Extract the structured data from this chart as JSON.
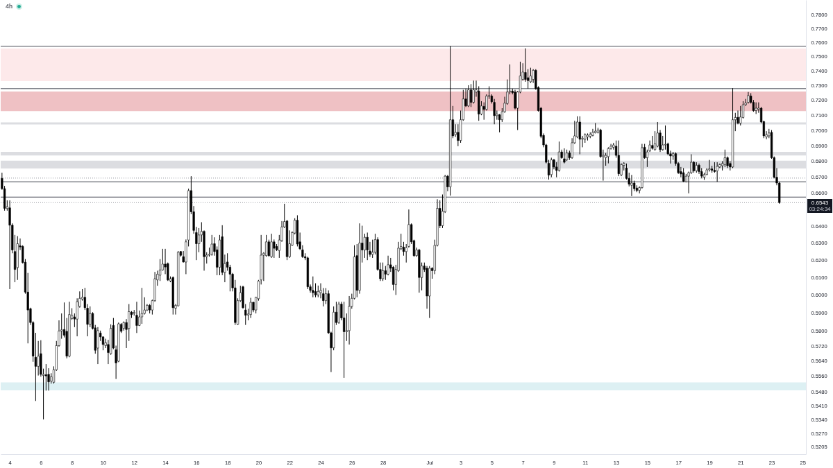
{
  "chart_data": {
    "type": "candlestick",
    "title": "4h",
    "color": "#000000",
    "log": true,
    "xlim": [
      "--06-03T10:00",
      "--07-25T05:00"
    ],
    "xticks": [
      {
        "value": "--06-04",
        "label": "4"
      },
      {
        "value": "--06-06",
        "label": "6"
      },
      {
        "value": "--06-08",
        "label": "8"
      },
      {
        "value": "--06-10",
        "label": "10"
      },
      {
        "value": "--06-12",
        "label": "12"
      },
      {
        "value": "--06-14",
        "label": "14"
      },
      {
        "value": "--06-16",
        "label": "16"
      },
      {
        "value": "--06-18",
        "label": "18"
      },
      {
        "value": "--06-20",
        "label": "20"
      },
      {
        "value": "--06-22",
        "label": "22"
      },
      {
        "value": "--06-24",
        "label": "24"
      },
      {
        "value": "--06-26",
        "label": "26"
      },
      {
        "value": "--06-28",
        "label": "28"
      },
      {
        "value": "--07-01",
        "label": "Jul"
      },
      {
        "value": "--07-03",
        "label": "3"
      },
      {
        "value": "--07-05",
        "label": "5"
      },
      {
        "value": "--07-07",
        "label": "7"
      },
      {
        "value": "--07-09",
        "label": "9"
      },
      {
        "value": "--07-11",
        "label": "11"
      },
      {
        "value": "--07-13",
        "label": "13"
      },
      {
        "value": "--07-15",
        "label": "15"
      },
      {
        "value": "--07-17",
        "label": "17"
      },
      {
        "value": "--07-19",
        "label": "19"
      },
      {
        "value": "--07-21",
        "label": "21"
      },
      {
        "value": "--07-23",
        "label": "23"
      },
      {
        "value": "--07-25",
        "label": "25"
      }
    ],
    "ylim": [
      0.517,
      0.791
    ],
    "yticks": [
      {
        "value": 0.78,
        "label": "0.7800"
      },
      {
        "value": 0.77,
        "label": "0.7700"
      },
      {
        "value": 0.76,
        "label": "0.7600"
      },
      {
        "value": 0.75,
        "label": "0.7500"
      },
      {
        "value": 0.74,
        "label": "0.7400"
      },
      {
        "value": 0.73,
        "label": "0.7300"
      },
      {
        "value": 0.72,
        "label": "0.7200"
      },
      {
        "value": 0.71,
        "label": "0.7100"
      },
      {
        "value": 0.7,
        "label": "0.7000"
      },
      {
        "value": 0.69,
        "label": "0.6900"
      },
      {
        "value": 0.68,
        "label": "0.6800"
      },
      {
        "value": 0.67,
        "label": "0.6700"
      },
      {
        "value": 0.66,
        "label": "0.6600"
      },
      {
        "value": 0.64,
        "label": "0.6400"
      },
      {
        "value": 0.63,
        "label": "0.6300"
      },
      {
        "value": 0.62,
        "label": "0.6200"
      },
      {
        "value": 0.61,
        "label": "0.6100"
      },
      {
        "value": 0.6,
        "label": "0.6000"
      },
      {
        "value": 0.59,
        "label": "0.5900"
      },
      {
        "value": 0.58,
        "label": "0.5800"
      },
      {
        "value": 0.572,
        "label": "0.5720"
      },
      {
        "value": 0.564,
        "label": "0.5640"
      },
      {
        "value": 0.556,
        "label": "0.5560"
      },
      {
        "value": 0.548,
        "label": "0.5480"
      },
      {
        "value": 0.541,
        "label": "0.5410"
      },
      {
        "value": 0.534,
        "label": "0.5340"
      },
      {
        "value": 0.527,
        "label": "0.5270"
      },
      {
        "value": 0.5205,
        "label": "0.5205"
      }
    ],
    "ref_lines": [
      {
        "axis": "y",
        "value": 0.7575,
        "color": "#434651",
        "line_style": "solid"
      },
      {
        "axis": "y",
        "value": 0.728,
        "color": "#434651",
        "line_style": "solid"
      },
      {
        "axis": "y",
        "value": 0.6695,
        "color": "#9598a1",
        "line_style": "dotted"
      },
      {
        "axis": "y",
        "value": 0.6672,
        "color": "#434651",
        "line_style": "solid"
      },
      {
        "axis": "y",
        "value": 0.6577,
        "color": "#434651",
        "line_style": "solid"
      },
      {
        "axis": "y",
        "value": 0.6543,
        "label": "0.6543",
        "color": "#9598a1",
        "line_style": "dotted"
      }
    ],
    "bands": [
      {
        "axis": "y",
        "from": 0.7331,
        "to": 0.7559,
        "color": "#fde9ea"
      },
      {
        "axis": "y",
        "from": 0.7128,
        "to": 0.726,
        "color": "#efc1c4"
      },
      {
        "axis": "y",
        "from": 0.704,
        "to": 0.7054,
        "color": "#dcdde1"
      },
      {
        "axis": "y",
        "from": 0.6838,
        "to": 0.6862,
        "color": "#dcdde1"
      },
      {
        "axis": "y",
        "from": 0.6755,
        "to": 0.6805,
        "color": "#dcdde1"
      },
      {
        "axis": "y",
        "from": 0.5488,
        "to": 0.5529,
        "color": "#ddf0f3"
      }
    ],
    "annotations": [
      "03:24:34"
    ],
    "x": [
      "--06-03T12:00",
      "--06-03T16:00",
      "--06-03T20:00",
      "--06-04T00:00",
      "--06-04T04:00",
      "--06-04T08:00",
      "--06-04T12:00",
      "--06-04T16:00",
      "--06-04T20:00",
      "--06-05T00:00",
      "--06-05T04:00",
      "--06-05T08:00",
      "--06-05T12:00",
      "--06-05T16:00",
      "--06-05T20:00",
      "--06-06T00:00",
      "--06-06T04:00",
      "--06-06T08:00",
      "--06-06T12:00",
      "--06-06T16:00",
      "--06-06T20:00",
      "--06-07T00:00",
      "--06-07T04:00",
      "--06-07T08:00",
      "--06-07T12:00",
      "--06-07T16:00",
      "--06-07T20:00",
      "--06-08T00:00",
      "--06-08T04:00",
      "--06-08T08:00",
      "--06-08T12:00",
      "--06-08T16:00",
      "--06-08T20:00",
      "--06-09T00:00",
      "--06-09T04:00",
      "--06-09T08:00",
      "--06-09T12:00",
      "--06-09T16:00",
      "--06-09T20:00",
      "--06-10T00:00",
      "--06-10T04:00",
      "--06-10T08:00",
      "--06-10T12:00",
      "--06-10T16:00",
      "--06-10T20:00",
      "--06-11T00:00",
      "--06-11T04:00",
      "--06-11T08:00",
      "--06-11T12:00",
      "--06-11T16:00",
      "--06-11T20:00",
      "--06-12T00:00",
      "--06-12T04:00",
      "--06-12T08:00",
      "--06-12T12:00",
      "--06-12T16:00",
      "--06-12T20:00",
      "--06-13T00:00",
      "--06-13T04:00",
      "--06-13T08:00",
      "--06-13T12:00",
      "--06-13T16:00",
      "--06-13T20:00",
      "--06-14T00:00",
      "--06-14T04:00",
      "--06-14T08:00",
      "--06-14T12:00",
      "--06-14T16:00",
      "--06-14T20:00",
      "--06-15T00:00",
      "--06-15T04:00",
      "--06-15T08:00",
      "--06-15T12:00",
      "--06-15T16:00",
      "--06-15T20:00",
      "--06-16T00:00",
      "--06-16T04:00",
      "--06-16T08:00",
      "--06-16T12:00",
      "--06-16T16:00",
      "--06-16T20:00",
      "--06-17T00:00",
      "--06-17T04:00",
      "--06-17T08:00",
      "--06-17T12:00",
      "--06-17T16:00",
      "--06-17T20:00",
      "--06-18T00:00",
      "--06-18T04:00",
      "--06-18T08:00",
      "--06-18T12:00",
      "--06-18T16:00",
      "--06-18T20:00",
      "--06-19T00:00",
      "--06-19T04:00",
      "--06-19T08:00",
      "--06-19T12:00",
      "--06-19T16:00",
      "--06-19T20:00",
      "--06-20T00:00",
      "--06-20T04:00",
      "--06-20T08:00",
      "--06-20T12:00",
      "--06-20T16:00",
      "--06-20T20:00",
      "--06-21T00:00",
      "--06-21T04:00",
      "--06-21T08:00",
      "--06-21T12:00",
      "--06-21T16:00",
      "--06-21T20:00",
      "--06-22T00:00",
      "--06-22T04:00",
      "--06-22T08:00",
      "--06-22T12:00",
      "--06-22T16:00",
      "--06-22T20:00",
      "--06-23T00:00",
      "--06-23T04:00",
      "--06-23T08:00",
      "--06-23T12:00",
      "--06-23T16:00",
      "--06-23T20:00",
      "--06-24T00:00",
      "--06-24T04:00",
      "--06-24T08:00",
      "--06-24T12:00",
      "--06-24T16:00",
      "--06-24T20:00",
      "--06-25T00:00",
      "--06-25T04:00",
      "--06-25T08:00",
      "--06-25T12:00",
      "--06-25T16:00",
      "--06-25T20:00",
      "--06-26T00:00",
      "--06-26T04:00",
      "--06-26T08:00",
      "--06-26T12:00",
      "--06-26T16:00",
      "--06-26T20:00",
      "--06-27T00:00",
      "--06-27T04:00",
      "--06-27T08:00",
      "--06-27T12:00",
      "--06-27T16:00",
      "--06-27T20:00",
      "--06-28T00:00",
      "--06-28T04:00",
      "--06-28T08:00",
      "--06-28T12:00",
      "--06-28T16:00",
      "--06-28T20:00",
      "--06-29T00:00",
      "--06-29T04:00",
      "--06-29T08:00",
      "--06-29T12:00",
      "--06-29T16:00",
      "--06-29T20:00",
      "--06-30T00:00",
      "--06-30T04:00",
      "--06-30T08:00",
      "--06-30T12:00",
      "--06-30T16:00",
      "--06-30T20:00",
      "--07-01T00:00",
      "--07-01T04:00",
      "--07-01T08:00",
      "--07-01T12:00",
      "--07-01T16:00",
      "--07-01T20:00",
      "--07-02T00:00",
      "--07-02T04:00",
      "--07-02T08:00",
      "--07-02T12:00",
      "--07-02T16:00",
      "--07-02T20:00",
      "--07-03T00:00",
      "--07-03T04:00",
      "--07-03T08:00",
      "--07-03T12:00",
      "--07-03T16:00",
      "--07-03T20:00",
      "--07-04T00:00",
      "--07-04T04:00",
      "--07-04T08:00",
      "--07-04T12:00",
      "--07-04T16:00",
      "--07-04T20:00",
      "--07-05T00:00",
      "--07-05T04:00",
      "--07-05T08:00",
      "--07-05T12:00",
      "--07-05T16:00",
      "--07-05T20:00",
      "--07-06T00:00",
      "--07-06T04:00",
      "--07-06T08:00",
      "--07-06T12:00",
      "--07-06T16:00",
      "--07-06T20:00",
      "--07-07T00:00",
      "--07-07T04:00",
      "--07-07T08:00",
      "--07-07T12:00",
      "--07-07T16:00",
      "--07-07T20:00",
      "--07-08T00:00",
      "--07-08T04:00",
      "--07-08T08:00",
      "--07-08T12:00",
      "--07-08T16:00",
      "--07-08T20:00",
      "--07-09T00:00",
      "--07-09T04:00",
      "--07-09T08:00",
      "--07-09T12:00",
      "--07-09T16:00",
      "--07-09T20:00",
      "--07-10T00:00",
      "--07-10T04:00",
      "--07-10T08:00",
      "--07-10T12:00",
      "--07-10T16:00",
      "--07-10T20:00",
      "--07-11T00:00",
      "--07-11T04:00",
      "--07-11T08:00",
      "--07-11T12:00",
      "--07-11T16:00",
      "--07-11T20:00",
      "--07-12T00:00",
      "--07-12T04:00",
      "--07-12T08:00",
      "--07-12T12:00",
      "--07-12T16:00",
      "--07-12T20:00",
      "--07-13T00:00",
      "--07-13T04:00",
      "--07-13T08:00",
      "--07-13T12:00",
      "--07-13T16:00",
      "--07-13T20:00",
      "--07-14T00:00",
      "--07-14T04:00",
      "--07-14T08:00",
      "--07-14T12:00",
      "--07-14T16:00",
      "--07-14T20:00",
      "--07-15T00:00",
      "--07-15T04:00",
      "--07-15T08:00",
      "--07-15T12:00",
      "--07-15T16:00",
      "--07-15T20:00",
      "--07-16T00:00",
      "--07-16T04:00",
      "--07-16T08:00",
      "--07-16T12:00",
      "--07-16T16:00",
      "--07-16T20:00",
      "--07-17T00:00",
      "--07-17T04:00",
      "--07-17T08:00",
      "--07-17T12:00",
      "--07-17T16:00",
      "--07-17T20:00",
      "--07-18T00:00",
      "--07-18T04:00",
      "--07-18T08:00",
      "--07-18T12:00",
      "--07-18T16:00",
      "--07-18T20:00",
      "--07-19T00:00",
      "--07-19T04:00",
      "--07-19T08:00",
      "--07-19T12:00",
      "--07-19T16:00",
      "--07-19T20:00",
      "--07-20T00:00",
      "--07-20T04:00",
      "--07-20T08:00",
      "--07-20T12:00",
      "--07-20T16:00",
      "--07-20T20:00",
      "--07-21T00:00",
      "--07-21T04:00",
      "--07-21T08:00",
      "--07-21T12:00",
      "--07-21T16:00",
      "--07-21T20:00",
      "--07-22T00:00",
      "--07-22T04:00",
      "--07-22T08:00",
      "--07-22T12:00",
      "--07-22T16:00",
      "--07-22T20:00",
      "--07-23T00:00",
      "--07-23T04:00",
      "--07-23T08:00",
      "--07-23T12:00"
    ],
    "ohlc": [
      [
        0.6693,
        0.6729,
        0.6622,
        0.6629
      ],
      [
        0.6629,
        0.6646,
        0.6494,
        0.6508
      ],
      [
        0.6507,
        0.6557,
        0.6494,
        0.6518
      ],
      [
        0.6511,
        0.6557,
        0.6034,
        0.6406
      ],
      [
        0.6406,
        0.6417,
        0.624,
        0.6259
      ],
      [
        0.625,
        0.6348,
        0.6073,
        0.6146
      ],
      [
        0.6157,
        0.6341,
        0.6086,
        0.6296
      ],
      [
        0.6284,
        0.6327,
        0.6259,
        0.6277
      ],
      [
        0.628,
        0.6287,
        0.618,
        0.6186
      ],
      [
        0.6188,
        0.6206,
        0.6008,
        0.6017
      ],
      [
        0.6017,
        0.6126,
        0.5735,
        0.5917
      ],
      [
        0.5924,
        0.593,
        0.5835,
        0.5848
      ],
      [
        0.5848,
        0.5855,
        0.5637,
        0.5667
      ],
      [
        0.5661,
        0.5792,
        0.5434,
        0.5613
      ],
      [
        0.5613,
        0.5748,
        0.5565,
        0.5667
      ],
      [
        0.568,
        0.5752,
        0.5559,
        0.5571
      ],
      [
        0.5565,
        0.5601,
        0.5341,
        0.5571
      ],
      [
        0.5569,
        0.5625,
        0.5487,
        0.5563
      ],
      [
        0.5571,
        0.5603,
        0.5487,
        0.5532
      ],
      [
        0.5535,
        0.5577,
        0.5523,
        0.5559
      ],
      [
        0.553,
        0.5613,
        0.5523,
        0.5595
      ],
      [
        0.5595,
        0.5748,
        0.5589,
        0.5723
      ],
      [
        0.5723,
        0.586,
        0.5717,
        0.5802
      ],
      [
        0.5802,
        0.5898,
        0.576,
        0.5808
      ],
      [
        0.581,
        0.5959,
        0.5767,
        0.5779
      ],
      [
        0.58,
        0.5873,
        0.5655,
        0.5667
      ],
      [
        0.5667,
        0.5963,
        0.5661,
        0.5892
      ],
      [
        0.587,
        0.5927,
        0.5863,
        0.5888
      ],
      [
        0.5879,
        0.5898,
        0.5823,
        0.5867
      ],
      [
        0.5867,
        0.5982,
        0.5773,
        0.5963
      ],
      [
        0.5937,
        0.6021,
        0.593,
        0.5982
      ],
      [
        0.5978,
        0.6034,
        0.5969,
        0.5988
      ],
      [
        0.5988,
        0.6041,
        0.5917,
        0.593
      ],
      [
        0.5927,
        0.595,
        0.5773,
        0.5838
      ],
      [
        0.5838,
        0.5937,
        0.5823,
        0.5898
      ],
      [
        0.5898,
        0.5905,
        0.581,
        0.5816
      ],
      [
        0.5819,
        0.5835,
        0.568,
        0.5698
      ],
      [
        0.571,
        0.5823,
        0.5625,
        0.5804
      ],
      [
        0.5791,
        0.5804,
        0.5748,
        0.577
      ],
      [
        0.577,
        0.5773,
        0.5698,
        0.5729
      ],
      [
        0.5723,
        0.576,
        0.571,
        0.5739
      ],
      [
        0.5729,
        0.5754,
        0.5625,
        0.5686
      ],
      [
        0.568,
        0.5838,
        0.5674,
        0.5816
      ],
      [
        0.5832,
        0.5873,
        0.5704,
        0.571
      ],
      [
        0.5701,
        0.5723,
        0.5547,
        0.5631
      ],
      [
        0.564,
        0.5848,
        0.5635,
        0.5841
      ],
      [
        0.5838,
        0.5845,
        0.5791,
        0.58
      ],
      [
        0.5816,
        0.5854,
        0.5804,
        0.5848
      ],
      [
        0.5848,
        0.5867,
        0.571,
        0.581
      ],
      [
        0.5816,
        0.595,
        0.5748,
        0.5908
      ],
      [
        0.5905,
        0.5911,
        0.5873,
        0.5892
      ],
      [
        0.5898,
        0.5917,
        0.5886,
        0.5904
      ],
      [
        0.5888,
        0.5963,
        0.5791,
        0.5832
      ],
      [
        0.5832,
        0.5914,
        0.5829,
        0.5879
      ],
      [
        0.5879,
        0.6041,
        0.5841,
        0.5898
      ],
      [
        0.5898,
        0.5988,
        0.5892,
        0.5917
      ],
      [
        0.5917,
        0.595,
        0.5911,
        0.5943
      ],
      [
        0.5943,
        0.595,
        0.5898,
        0.5917
      ],
      [
        0.5917,
        0.5975,
        0.5892,
        0.5969
      ],
      [
        0.5969,
        0.6132,
        0.5963,
        0.6093
      ],
      [
        0.6086,
        0.6139,
        0.6053,
        0.6119
      ],
      [
        0.6113,
        0.6206,
        0.608,
        0.6143
      ],
      [
        0.6143,
        0.6266,
        0.6139,
        0.6177
      ],
      [
        0.6177,
        0.6266,
        0.6119,
        0.616
      ],
      [
        0.618,
        0.6186,
        0.608,
        0.6086
      ],
      [
        0.608,
        0.6106,
        0.6073,
        0.6093
      ],
      [
        0.61,
        0.6106,
        0.5892,
        0.593
      ],
      [
        0.5927,
        0.595,
        0.5892,
        0.5943
      ],
      [
        0.594,
        0.6253,
        0.5937,
        0.6246
      ],
      [
        0.625,
        0.6253,
        0.622,
        0.6228
      ],
      [
        0.622,
        0.6253,
        0.6186,
        0.6189
      ],
      [
        0.6189,
        0.6321,
        0.6119,
        0.6307
      ],
      [
        0.6318,
        0.6629,
        0.628,
        0.6617
      ],
      [
        0.6617,
        0.6707,
        0.6473,
        0.6487
      ],
      [
        0.6487,
        0.6522,
        0.6355,
        0.6375
      ],
      [
        0.6362,
        0.6396,
        0.62,
        0.6296
      ],
      [
        0.6296,
        0.6389,
        0.6246,
        0.6348
      ],
      [
        0.6348,
        0.6424,
        0.6307,
        0.6369
      ],
      [
        0.6369,
        0.6375,
        0.6139,
        0.622
      ],
      [
        0.622,
        0.6246,
        0.618,
        0.6229
      ],
      [
        0.6229,
        0.6273,
        0.622,
        0.6234
      ],
      [
        0.6234,
        0.6348,
        0.6226,
        0.6294
      ],
      [
        0.6296,
        0.6334,
        0.6226,
        0.625
      ],
      [
        0.626,
        0.628,
        0.6113,
        0.6159
      ],
      [
        0.6159,
        0.6348,
        0.6113,
        0.6318
      ],
      [
        0.6337,
        0.6406,
        0.6113,
        0.6129
      ],
      [
        0.6129,
        0.6232,
        0.6073,
        0.618
      ],
      [
        0.6189,
        0.624,
        0.6139,
        0.6159
      ],
      [
        0.6159,
        0.6173,
        0.6021,
        0.6119
      ],
      [
        0.6119,
        0.6126,
        0.6021,
        0.6041
      ],
      [
        0.6041,
        0.6086,
        0.5835,
        0.5848
      ],
      [
        0.5838,
        0.5982,
        0.5835,
        0.5969
      ],
      [
        0.5969,
        0.6053,
        0.5962,
        0.6014
      ],
      [
        0.6047,
        0.6053,
        0.5924,
        0.593
      ],
      [
        0.5917,
        0.595,
        0.5835,
        0.5888
      ],
      [
        0.5889,
        0.5924,
        0.586,
        0.5895
      ],
      [
        0.5892,
        0.5985,
        0.5873,
        0.596
      ],
      [
        0.596,
        0.5963,
        0.5905,
        0.5917
      ],
      [
        0.5917,
        0.5991,
        0.5898,
        0.5988
      ],
      [
        0.598,
        0.6086,
        0.5969,
        0.608
      ],
      [
        0.6086,
        0.6348,
        0.606,
        0.6229
      ],
      [
        0.6229,
        0.6246,
        0.608,
        0.624
      ],
      [
        0.6226,
        0.6348,
        0.622,
        0.6307
      ],
      [
        0.6307,
        0.632,
        0.622,
        0.6226
      ],
      [
        0.622,
        0.6355,
        0.6213,
        0.6307
      ],
      [
        0.6307,
        0.6321,
        0.6213,
        0.6269
      ],
      [
        0.628,
        0.6294,
        0.6253,
        0.626
      ],
      [
        0.6256,
        0.6348,
        0.6213,
        0.6318
      ],
      [
        0.6314,
        0.6431,
        0.6307,
        0.6396
      ],
      [
        0.6396,
        0.6536,
        0.6389,
        0.6428
      ],
      [
        0.6431,
        0.6438,
        0.62,
        0.622
      ],
      [
        0.622,
        0.6375,
        0.6213,
        0.6296
      ],
      [
        0.6287,
        0.6369,
        0.6283,
        0.6362
      ],
      [
        0.6359,
        0.6448,
        0.6351,
        0.6436
      ],
      [
        0.6436,
        0.6466,
        0.628,
        0.6294
      ],
      [
        0.6307,
        0.6362,
        0.6259,
        0.6266
      ],
      [
        0.626,
        0.6287,
        0.6213,
        0.622
      ],
      [
        0.622,
        0.624,
        0.62,
        0.6213
      ],
      [
        0.6213,
        0.622,
        0.6034,
        0.6047
      ],
      [
        0.6047,
        0.606,
        0.6014,
        0.6027
      ],
      [
        0.6027,
        0.6106,
        0.5988,
        0.6014
      ],
      [
        0.602,
        0.6067,
        0.5988,
        0.6001
      ],
      [
        0.6001,
        0.6054,
        0.5988,
        0.6021
      ],
      [
        0.6014,
        0.6067,
        0.5982,
        0.6027
      ],
      [
        0.6008,
        0.604,
        0.5937,
        0.5969
      ],
      [
        0.5969,
        0.604,
        0.595,
        0.6008
      ],
      [
        0.6008,
        0.6027,
        0.5786,
        0.5792
      ],
      [
        0.5792,
        0.5798,
        0.5583,
        0.5711
      ],
      [
        0.5711,
        0.5937,
        0.5698,
        0.5905
      ],
      [
        0.5905,
        0.5963,
        0.5835,
        0.5848
      ],
      [
        0.5848,
        0.5963,
        0.5841,
        0.595
      ],
      [
        0.595,
        0.5963,
        0.586,
        0.5873
      ],
      [
        0.5873,
        0.5963,
        0.5553,
        0.5798
      ],
      [
        0.5798,
        0.5898,
        0.5748,
        0.5804
      ],
      [
        0.5804,
        0.5995,
        0.5729,
        0.5937
      ],
      [
        0.5937,
        0.6008,
        0.5924,
        0.5982
      ],
      [
        0.5982,
        0.6287,
        0.5976,
        0.6219
      ],
      [
        0.6226,
        0.6294,
        0.5988,
        0.6027
      ],
      [
        0.6027,
        0.6417,
        0.6008,
        0.63
      ],
      [
        0.63,
        0.6403,
        0.6186,
        0.6259
      ],
      [
        0.6259,
        0.6355,
        0.6213,
        0.6334
      ],
      [
        0.6334,
        0.6362,
        0.62,
        0.6259
      ],
      [
        0.6253,
        0.6307,
        0.6219,
        0.6233
      ],
      [
        0.6233,
        0.632,
        0.6213,
        0.6246
      ],
      [
        0.6246,
        0.6355,
        0.6233,
        0.632
      ],
      [
        0.632,
        0.6334,
        0.6139,
        0.6146
      ],
      [
        0.6146,
        0.6186,
        0.608,
        0.6093
      ],
      [
        0.6093,
        0.6186,
        0.608,
        0.6139
      ],
      [
        0.6139,
        0.6166,
        0.6086,
        0.6119
      ],
      [
        0.6119,
        0.6226,
        0.6112,
        0.6173
      ],
      [
        0.6173,
        0.6213,
        0.6132,
        0.6153
      ],
      [
        0.6159,
        0.6166,
        0.6027,
        0.606
      ],
      [
        0.606,
        0.6173,
        0.6001,
        0.6146
      ],
      [
        0.6139,
        0.6307,
        0.6132,
        0.627
      ],
      [
        0.6266,
        0.6355,
        0.6259,
        0.628
      ],
      [
        0.6276,
        0.6307,
        0.6226,
        0.625
      ],
      [
        0.625,
        0.6294,
        0.6186,
        0.6273
      ],
      [
        0.628,
        0.6501,
        0.6273,
        0.641
      ],
      [
        0.641,
        0.6417,
        0.6294,
        0.6307
      ],
      [
        0.6314,
        0.632,
        0.6219,
        0.6226
      ],
      [
        0.6226,
        0.6273,
        0.6219,
        0.6259
      ],
      [
        0.6259,
        0.6266,
        0.6014,
        0.61
      ],
      [
        0.61,
        0.6186,
        0.6027,
        0.6166
      ],
      [
        0.6166,
        0.6186,
        0.6132,
        0.6146
      ],
      [
        0.6153,
        0.6166,
        0.5924,
        0.5995
      ],
      [
        0.5995,
        0.6166,
        0.5873,
        0.6153
      ],
      [
        0.6153,
        0.6159,
        0.6093,
        0.6139
      ],
      [
        0.6139,
        0.632,
        0.6119,
        0.6287
      ],
      [
        0.6287,
        0.6564,
        0.628,
        0.6508
      ],
      [
        0.6508,
        0.6557,
        0.6389,
        0.6403
      ],
      [
        0.6403,
        0.6593,
        0.6389,
        0.649
      ],
      [
        0.6487,
        0.6715,
        0.648,
        0.6707
      ],
      [
        0.6707,
        0.6715,
        0.6613,
        0.664
      ],
      [
        0.664,
        0.7576,
        0.6586,
        0.7071
      ],
      [
        0.7071,
        0.7163,
        0.695,
        0.6965
      ],
      [
        0.6973,
        0.7041,
        0.6958,
        0.6988
      ],
      [
        0.6988,
        0.7041,
        0.6898,
        0.6935
      ],
      [
        0.6935,
        0.7132,
        0.692,
        0.7071
      ],
      [
        0.7071,
        0.7272,
        0.7064,
        0.721
      ],
      [
        0.721,
        0.728,
        0.7156,
        0.7163
      ],
      [
        0.7163,
        0.7303,
        0.7156,
        0.7272
      ],
      [
        0.7272,
        0.7311,
        0.7156,
        0.7187
      ],
      [
        0.7187,
        0.7335,
        0.7179,
        0.7272
      ],
      [
        0.7256,
        0.7335,
        0.7225,
        0.7272
      ],
      [
        0.7264,
        0.7296,
        0.7064,
        0.7109
      ],
      [
        0.7109,
        0.7195,
        0.7101,
        0.7163
      ],
      [
        0.716,
        0.7187,
        0.7071,
        0.714
      ],
      [
        0.714,
        0.7241,
        0.7132,
        0.723
      ],
      [
        0.7227,
        0.7296,
        0.721,
        0.7233
      ],
      [
        0.723,
        0.7241,
        0.7179,
        0.7191
      ],
      [
        0.7187,
        0.721,
        0.7041,
        0.7098
      ],
      [
        0.7098,
        0.7132,
        0.7071,
        0.7109
      ],
      [
        0.7104,
        0.7109,
        0.6988,
        0.7071
      ],
      [
        0.7071,
        0.7148,
        0.7056,
        0.7124
      ],
      [
        0.7124,
        0.7225,
        0.7117,
        0.7182
      ],
      [
        0.7179,
        0.7343,
        0.7171,
        0.7257
      ],
      [
        0.7257,
        0.7447,
        0.7241,
        0.7264
      ],
      [
        0.7264,
        0.728,
        0.7241,
        0.7253
      ],
      [
        0.7257,
        0.7272,
        0.714,
        0.7148
      ],
      [
        0.7148,
        0.7264,
        0.7003,
        0.7257
      ],
      [
        0.7257,
        0.7466,
        0.7249,
        0.7367
      ],
      [
        0.7343,
        0.7455,
        0.7335,
        0.7394
      ],
      [
        0.7391,
        0.756,
        0.7327,
        0.7343
      ],
      [
        0.7355,
        0.7414,
        0.728,
        0.7335
      ],
      [
        0.7327,
        0.7424,
        0.7319,
        0.7367
      ],
      [
        0.7343,
        0.7414,
        0.7319,
        0.7406
      ],
      [
        0.7406,
        0.7414,
        0.7272,
        0.728
      ],
      [
        0.7288,
        0.7296,
        0.7125,
        0.7132
      ],
      [
        0.7148,
        0.7156,
        0.695,
        0.6962
      ],
      [
        0.6968,
        0.6981,
        0.6891,
        0.6906
      ],
      [
        0.6906,
        0.6913,
        0.6788,
        0.6795
      ],
      [
        0.6788,
        0.681,
        0.6686,
        0.6714
      ],
      [
        0.6717,
        0.6824,
        0.67,
        0.681
      ],
      [
        0.681,
        0.6817,
        0.675,
        0.6765
      ],
      [
        0.6765,
        0.6795,
        0.67,
        0.6743
      ],
      [
        0.6743,
        0.6928,
        0.6736,
        0.6861
      ],
      [
        0.6861,
        0.6876,
        0.6817,
        0.6824
      ],
      [
        0.6817,
        0.6884,
        0.6788,
        0.6795
      ],
      [
        0.681,
        0.6876,
        0.6803,
        0.6854
      ],
      [
        0.6854,
        0.6869,
        0.681,
        0.6824
      ],
      [
        0.6824,
        0.695,
        0.6817,
        0.692
      ],
      [
        0.692,
        0.7064,
        0.6913,
        0.6965
      ],
      [
        0.6958,
        0.7094,
        0.695,
        0.7056
      ],
      [
        0.7056,
        0.7094,
        0.6846,
        0.6943
      ],
      [
        0.6943,
        0.6965,
        0.6891,
        0.695
      ],
      [
        0.6943,
        0.6981,
        0.692,
        0.6973
      ],
      [
        0.6958,
        0.6981,
        0.6935,
        0.697
      ],
      [
        0.6962,
        0.6988,
        0.695,
        0.6976
      ],
      [
        0.6968,
        0.7011,
        0.6962,
        0.6988
      ],
      [
        0.6985,
        0.7049,
        0.6981,
        0.6996
      ],
      [
        0.6988,
        0.7018,
        0.6981,
        0.7003
      ],
      [
        0.7003,
        0.7011,
        0.6824,
        0.6831
      ],
      [
        0.6831,
        0.6876,
        0.6679,
        0.6839
      ],
      [
        0.6824,
        0.6854,
        0.6773,
        0.6839
      ],
      [
        0.6831,
        0.6891,
        0.6788,
        0.6883
      ],
      [
        0.6883,
        0.6913,
        0.6876,
        0.6898
      ],
      [
        0.6891,
        0.692,
        0.6876,
        0.6906
      ],
      [
        0.6898,
        0.6935,
        0.6824,
        0.6839
      ],
      [
        0.6839,
        0.6935,
        0.6707,
        0.6722
      ],
      [
        0.6715,
        0.6788,
        0.6707,
        0.678
      ],
      [
        0.6775,
        0.6795,
        0.6743,
        0.6788
      ],
      [
        0.6758,
        0.6787,
        0.6686,
        0.6693
      ],
      [
        0.6693,
        0.6729,
        0.6643,
        0.6657
      ],
      [
        0.665,
        0.6715,
        0.6583,
        0.6664
      ],
      [
        0.6664,
        0.6679,
        0.6614,
        0.6629
      ],
      [
        0.6633,
        0.665,
        0.6607,
        0.6618
      ],
      [
        0.6618,
        0.6643,
        0.66,
        0.6636
      ],
      [
        0.6636,
        0.6913,
        0.6629,
        0.6888
      ],
      [
        0.6891,
        0.6913,
        0.6817,
        0.6824
      ],
      [
        0.6824,
        0.6876,
        0.6765,
        0.6861
      ],
      [
        0.6868,
        0.6935,
        0.6861,
        0.6906
      ],
      [
        0.6903,
        0.6965,
        0.6876,
        0.6884
      ],
      [
        0.6876,
        0.6996,
        0.6869,
        0.6913
      ],
      [
        0.6898,
        0.7056,
        0.6891,
        0.6984
      ],
      [
        0.6984,
        0.7003,
        0.6861,
        0.6876
      ],
      [
        0.6876,
        0.6965,
        0.6869,
        0.6906
      ],
      [
        0.6906,
        0.7033,
        0.6876,
        0.691
      ],
      [
        0.6913,
        0.6921,
        0.6839,
        0.6849
      ],
      [
        0.6849,
        0.6869,
        0.6787,
        0.6835
      ],
      [
        0.6835,
        0.6861,
        0.681,
        0.685
      ],
      [
        0.685,
        0.6858,
        0.6773,
        0.6787
      ],
      [
        0.6787,
        0.6795,
        0.6721,
        0.6729
      ],
      [
        0.6736,
        0.6765,
        0.67,
        0.6721
      ],
      [
        0.6729,
        0.6758,
        0.667,
        0.6675
      ],
      [
        0.6672,
        0.6721,
        0.6668,
        0.6707
      ],
      [
        0.6707,
        0.6736,
        0.66,
        0.6729
      ],
      [
        0.6729,
        0.6846,
        0.6721,
        0.6795
      ],
      [
        0.6795,
        0.6802,
        0.6729,
        0.6741
      ],
      [
        0.6741,
        0.6795,
        0.6729,
        0.6776
      ],
      [
        0.6776,
        0.6787,
        0.6721,
        0.6736
      ],
      [
        0.6736,
        0.6758,
        0.6693,
        0.6707
      ],
      [
        0.67,
        0.6729,
        0.6684,
        0.6717
      ],
      [
        0.6717,
        0.6758,
        0.6714,
        0.6747
      ],
      [
        0.6747,
        0.681,
        0.6736,
        0.6754
      ],
      [
        0.6753,
        0.6773,
        0.6729,
        0.6744
      ],
      [
        0.6744,
        0.6795,
        0.6729,
        0.6736
      ],
      [
        0.674,
        0.6795,
        0.6672,
        0.6769
      ],
      [
        0.6765,
        0.6787,
        0.6758,
        0.678
      ],
      [
        0.6773,
        0.6802,
        0.6743,
        0.6787
      ],
      [
        0.678,
        0.6876,
        0.6765,
        0.6824
      ],
      [
        0.6824,
        0.6832,
        0.6758,
        0.6773
      ],
      [
        0.6787,
        0.6802,
        0.6743,
        0.6765
      ],
      [
        0.6765,
        0.7283,
        0.6758,
        0.7071
      ],
      [
        0.7071,
        0.7117,
        0.6996,
        0.7086
      ],
      [
        0.7087,
        0.7132,
        0.7041,
        0.7048
      ],
      [
        0.7048,
        0.7163,
        0.7033,
        0.7089
      ],
      [
        0.7086,
        0.7195,
        0.7079,
        0.7171
      ],
      [
        0.7171,
        0.721,
        0.7163,
        0.7183
      ],
      [
        0.7187,
        0.7257,
        0.7179,
        0.7233
      ],
      [
        0.723,
        0.7249,
        0.7179,
        0.7187
      ],
      [
        0.7187,
        0.7203,
        0.7124,
        0.7132
      ],
      [
        0.7132,
        0.7187,
        0.7109,
        0.7148
      ],
      [
        0.714,
        0.7187,
        0.7117,
        0.7148
      ],
      [
        0.7148,
        0.7156,
        0.7048,
        0.7056
      ],
      [
        0.7059,
        0.7064,
        0.695,
        0.6965
      ],
      [
        0.6958,
        0.6996,
        0.6943,
        0.6973
      ],
      [
        0.6965,
        0.7011,
        0.695,
        0.6984
      ],
      [
        0.6988,
        0.7003,
        0.6817,
        0.6824
      ],
      [
        0.6824,
        0.6832,
        0.6693,
        0.67
      ],
      [
        0.67,
        0.6758,
        0.665,
        0.6664
      ],
      [
        0.6664,
        0.6672,
        0.6536,
        0.6543
      ]
    ]
  }
}
